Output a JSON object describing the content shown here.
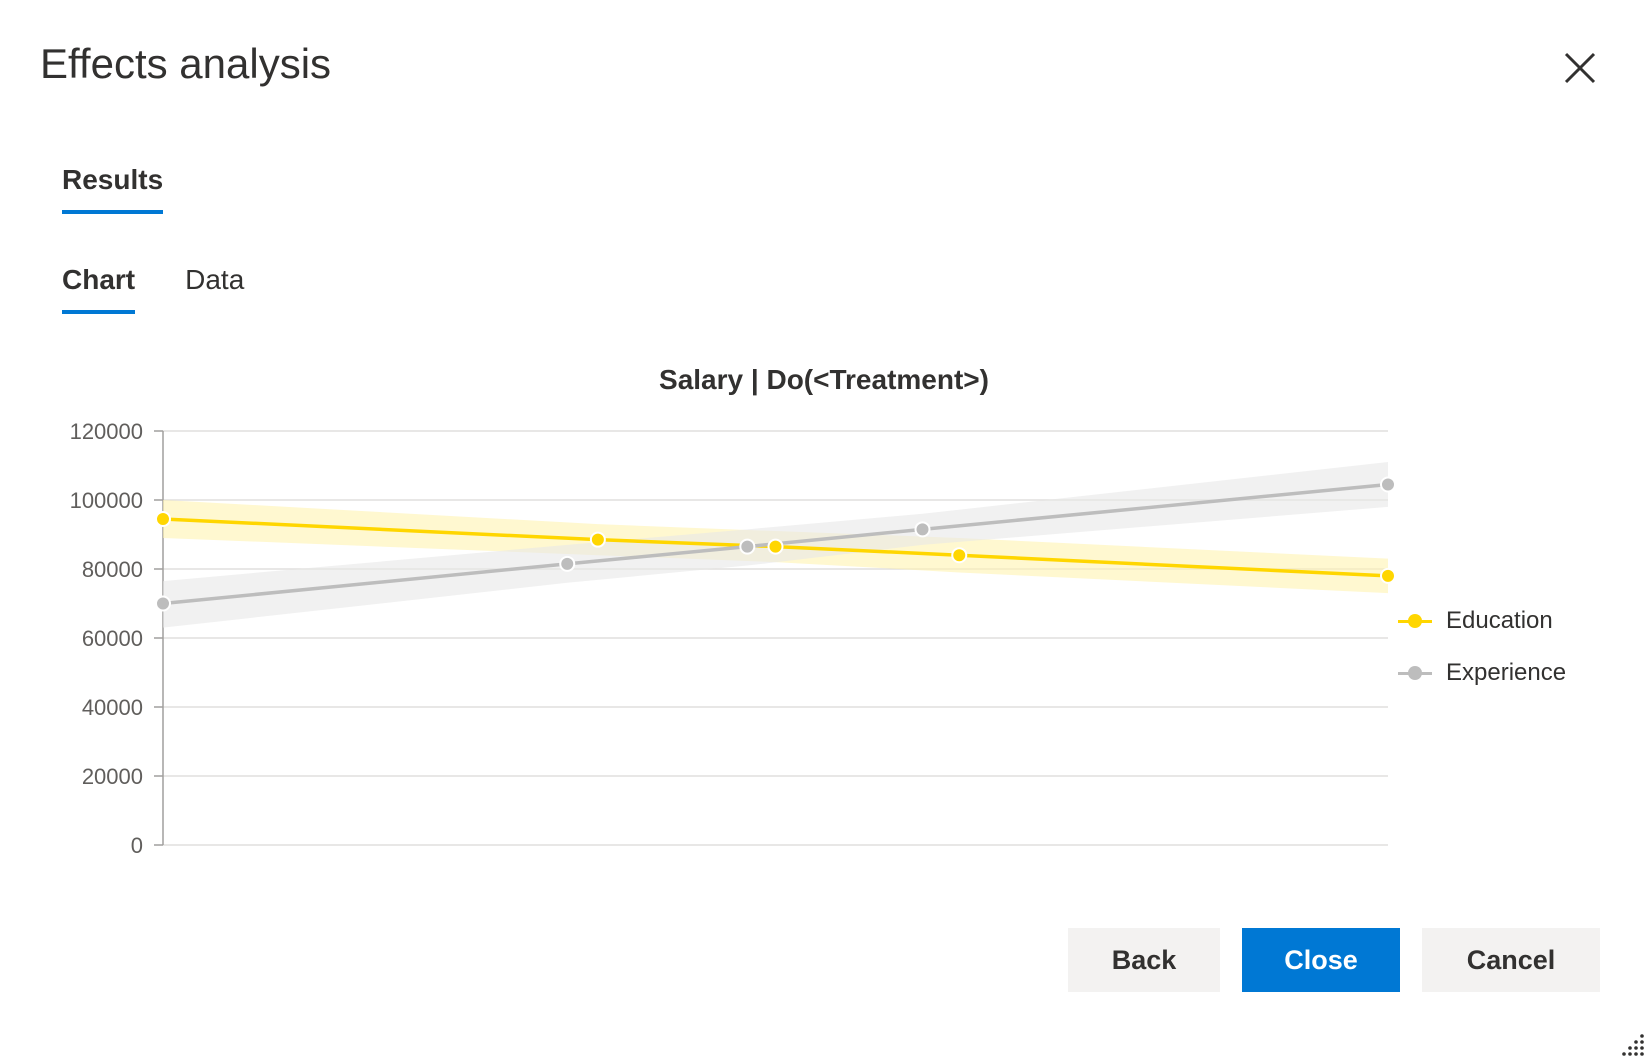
{
  "dialog": {
    "title": "Effects analysis",
    "close_icon": "close-icon"
  },
  "tabs": {
    "results_label": "Results"
  },
  "subtabs": {
    "chart_label": "Chart",
    "data_label": "Data",
    "active": "Chart"
  },
  "legend": [
    {
      "name": "Education",
      "color": "#ffd600"
    },
    {
      "name": "Experience",
      "color": "#bdbdbd"
    }
  ],
  "chart_data": {
    "type": "line",
    "title": "Salary | Do(<Treatment>)",
    "xlabel": "",
    "ylabel": "",
    "ylim": [
      0,
      120000
    ],
    "yticks": [
      "120000",
      "100000",
      "80000",
      "60000",
      "40000",
      "20000",
      "0"
    ],
    "xlim": [
      0,
      1
    ],
    "grid": true,
    "legend_position": "right",
    "series": [
      {
        "name": "Education",
        "color": "#ffd600",
        "band_color": "#fff3b0",
        "x": [
          0.0,
          0.355,
          0.5,
          0.65,
          1.0
        ],
        "y": [
          94500,
          88500,
          86500,
          84000,
          78000
        ],
        "band_low": [
          89000,
          84000,
          82000,
          79000,
          73000
        ],
        "band_high": [
          100000,
          93000,
          91000,
          89000,
          83000
        ]
      },
      {
        "name": "Experience",
        "color": "#bdbdbd",
        "band_color": "#e8e8e8",
        "x": [
          0.0,
          0.33,
          0.477,
          0.62,
          1.0
        ],
        "y": [
          70000,
          81500,
          86500,
          91500,
          104500
        ],
        "band_low": [
          63000,
          76000,
          81000,
          87000,
          98000
        ],
        "band_high": [
          76500,
          87000,
          91500,
          96000,
          111000
        ]
      }
    ]
  },
  "buttons": {
    "back": "Back",
    "close": "Close",
    "cancel": "Cancel"
  }
}
